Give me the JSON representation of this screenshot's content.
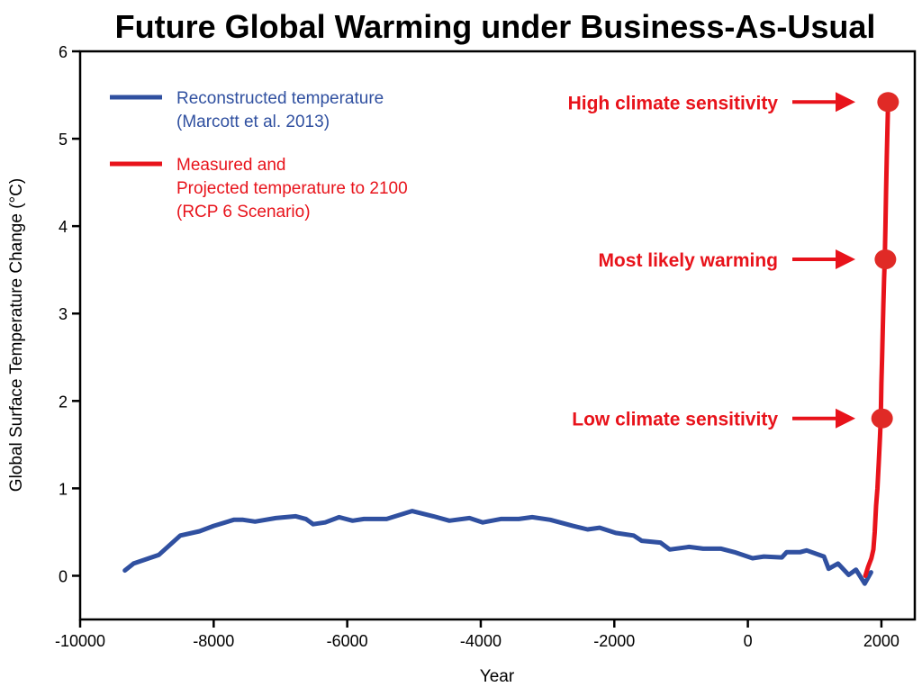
{
  "chart_data": {
    "type": "line",
    "title": "Future Global Warming under Business-As-Usual",
    "xlabel": "Year",
    "ylabel": "Global Surface Temperature Change (°C)",
    "xlim": [
      -10000,
      2500
    ],
    "ylim": [
      -0.5,
      6
    ],
    "xticks": [
      -10000,
      -8000,
      -6000,
      -4000,
      -2000,
      0,
      2000
    ],
    "yticks": [
      0,
      1,
      2,
      3,
      4,
      5,
      6
    ],
    "grid": false,
    "legend_placement": "top-left",
    "colors": {
      "blue": "#3050a0",
      "red": "#e8131b",
      "dot": "#e02a26",
      "axis": "#000000"
    },
    "series": [
      {
        "name": "Reconstructed temperature (Marcott et al. 2013)",
        "legend_lines": [
          "Reconstructed temperature",
          "(Marcott et al. 2013)"
        ],
        "color": "#3050a0",
        "x": [
          -9330,
          -9200,
          -8820,
          -8500,
          -8210,
          -8000,
          -7700,
          -7560,
          -7380,
          -7070,
          -6770,
          -6620,
          -6510,
          -6330,
          -6120,
          -5920,
          -5750,
          -5410,
          -5030,
          -4710,
          -4470,
          -4170,
          -3970,
          -3700,
          -3430,
          -3230,
          -2960,
          -2620,
          -2400,
          -2220,
          -1980,
          -1710,
          -1590,
          -1310,
          -1170,
          -880,
          -670,
          -400,
          -200,
          70,
          240,
          510,
          580,
          780,
          880,
          1140,
          1210,
          1350,
          1510,
          1620,
          1750,
          1845
        ],
        "y": [
          0.06,
          0.14,
          0.24,
          0.46,
          0.51,
          0.57,
          0.64,
          0.64,
          0.62,
          0.66,
          0.68,
          0.65,
          0.59,
          0.61,
          0.67,
          0.63,
          0.65,
          0.65,
          0.74,
          0.68,
          0.63,
          0.66,
          0.61,
          0.65,
          0.65,
          0.67,
          0.64,
          0.57,
          0.53,
          0.55,
          0.49,
          0.46,
          0.4,
          0.38,
          0.3,
          0.33,
          0.31,
          0.31,
          0.27,
          0.2,
          0.22,
          0.21,
          0.27,
          0.27,
          0.29,
          0.22,
          0.08,
          0.14,
          0.01,
          0.07,
          -0.09,
          0.04
        ]
      },
      {
        "name": "Measured and Projected temperature to 2100 (RCP 6 Scenario)",
        "legend_lines": [
          "Measured and",
          "Projected temperature to 2100",
          "(RCP 6 Scenario)"
        ],
        "color": "#e8131b",
        "x": [
          1760,
          1800,
          1850,
          1880,
          1900,
          1920,
          1940,
          1960,
          1980,
          1990,
          2000,
          2010,
          2020,
          2030,
          2040,
          2050,
          2060,
          2070,
          2080,
          2090,
          2100
        ],
        "y": [
          0.0,
          0.1,
          0.2,
          0.3,
          0.5,
          0.8,
          1.0,
          1.3,
          1.6,
          1.8,
          2.2,
          2.5,
          2.8,
          3.1,
          3.4,
          3.6,
          4.0,
          4.4,
          4.8,
          5.1,
          5.4
        ]
      }
    ],
    "annotations": [
      {
        "label": "High climate sensitivity",
        "x": 2100,
        "y": 5.42
      },
      {
        "label": "Most likely warming",
        "x": 2060,
        "y": 3.62
      },
      {
        "label": "Low climate sensitivity",
        "x": 2010,
        "y": 1.8
      }
    ]
  }
}
